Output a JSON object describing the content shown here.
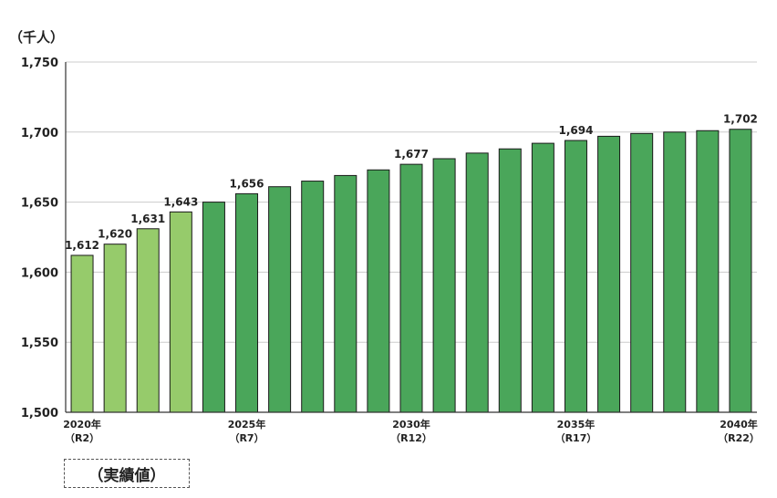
{
  "unit_label": "（千人）",
  "actual_label": "（実績値）",
  "colors": {
    "actual": "#96cb6b",
    "projected": "#4aa65a",
    "grid": "#cccccc",
    "axis": "#333333",
    "text": "#222222"
  },
  "chart_data": {
    "type": "bar",
    "title": "",
    "xlabel": "",
    "ylabel": "（千人）",
    "ylim": [
      1500,
      1750
    ],
    "yticks": [
      1500,
      1550,
      1600,
      1650,
      1700,
      1750
    ],
    "ytick_labels": [
      "1,500",
      "1,550",
      "1,600",
      "1,650",
      "1,700",
      "1,750"
    ],
    "grid": true,
    "categories": [
      "2020",
      "2021",
      "2022",
      "2023",
      "2024",
      "2025",
      "2026",
      "2027",
      "2028",
      "2029",
      "2030",
      "2031",
      "2032",
      "2033",
      "2034",
      "2035",
      "2036",
      "2037",
      "2038",
      "2039",
      "2040"
    ],
    "values": [
      1612,
      1620,
      1631,
      1643,
      1650,
      1656,
      1661,
      1665,
      1669,
      1673,
      1677,
      1681,
      1685,
      1688,
      1692,
      1694,
      1697,
      1699,
      1700,
      1701,
      1702
    ],
    "actual_count": 4,
    "data_labels": [
      {
        "index": 0,
        "text": "1,612"
      },
      {
        "index": 1,
        "text": "1,620"
      },
      {
        "index": 2,
        "text": "1,631"
      },
      {
        "index": 3,
        "text": "1,643"
      },
      {
        "index": 5,
        "text": "1,656"
      },
      {
        "index": 10,
        "text": "1,677"
      },
      {
        "index": 15,
        "text": "1,694"
      },
      {
        "index": 20,
        "text": "1,702"
      }
    ],
    "xtick_labels": [
      {
        "index": 0,
        "year": "2020年",
        "reiwa": "（R2）"
      },
      {
        "index": 5,
        "year": "2025年",
        "reiwa": "（R7）"
      },
      {
        "index": 10,
        "year": "2030年",
        "reiwa": "（R12）"
      },
      {
        "index": 15,
        "year": "2035年",
        "reiwa": "（R17）"
      },
      {
        "index": 20,
        "year": "2040年",
        "reiwa": "（R22）"
      }
    ]
  }
}
